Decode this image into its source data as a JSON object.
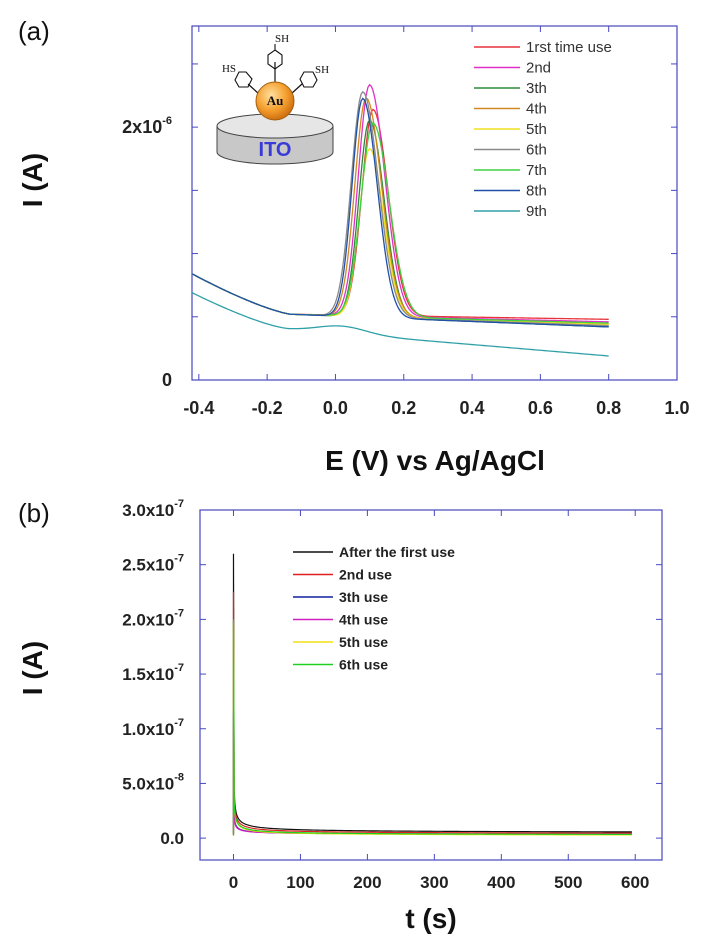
{
  "chart_data": [
    {
      "type": "line",
      "panel_label": "(a)",
      "xlabel": "E (V) vs Ag/AgCl",
      "ylabel": "I (A)",
      "xlim": [
        -0.42,
        1.0
      ],
      "ylim": [
        0,
        2.8e-06
      ],
      "x_ticks": [
        "-0.4",
        "-0.2",
        "0.0",
        "0.2",
        "0.4",
        "0.6",
        "0.8",
        "1.0"
      ],
      "x_tick_values": [
        -0.4,
        -0.2,
        0.0,
        0.2,
        0.4,
        0.6,
        0.8,
        1.0
      ],
      "y_ticks": [
        {
          "base": "0",
          "exp": "",
          "value": 0
        },
        {
          "base": "2x10",
          "exp": "-6",
          "value": 2e-06
        }
      ],
      "legend_position": "top-right",
      "inset": {
        "substrate": "ITO",
        "particle": "Au",
        "ligand_labels": [
          "SH",
          "HS",
          "SH"
        ]
      },
      "series": [
        {
          "name": "1rst time use",
          "color": "#e8333a",
          "peak_x": 0.11,
          "peak_y": 2.15e-06,
          "width": 0.054,
          "base_end": 4.8e-07,
          "shift": 0.0
        },
        {
          "name": "2nd",
          "color": "#e030c8",
          "peak_x": 0.1,
          "peak_y": 2.35e-06,
          "width": 0.055,
          "base_end": 4.6e-07,
          "shift": 0.0
        },
        {
          "name": "3th",
          "color": "#2a8a3a",
          "peak_x": 0.1,
          "peak_y": 2.08e-06,
          "width": 0.052,
          "base_end": 4.2e-07,
          "shift": -0.01
        },
        {
          "name": "4th",
          "color": "#d08a20",
          "peak_x": 0.09,
          "peak_y": 2.25e-06,
          "width": 0.055,
          "base_end": 4.4e-07,
          "shift": 0.0
        },
        {
          "name": "5th",
          "color": "#f2e020",
          "peak_x": 0.1,
          "peak_y": 1.85e-06,
          "width": 0.05,
          "base_end": 4.4e-07,
          "shift": 0.01
        },
        {
          "name": "6th",
          "color": "#8a8a8a",
          "peak_x": 0.08,
          "peak_y": 2.3e-06,
          "width": 0.056,
          "base_end": 4.3e-07,
          "shift": -0.01
        },
        {
          "name": "7th",
          "color": "#40d040",
          "peak_x": 0.11,
          "peak_y": 2.05e-06,
          "width": 0.058,
          "base_end": 4.5e-07,
          "shift": 0.0
        },
        {
          "name": "8th",
          "color": "#2050a8",
          "peak_x": 0.08,
          "peak_y": 2.25e-06,
          "width": 0.052,
          "base_end": 4.2e-07,
          "shift": -0.01
        },
        {
          "name": "9th",
          "color": "#30a0a8",
          "peak_x": 0.02,
          "peak_y": 4e-08,
          "width": 0.1,
          "base_end": 3.1e-07,
          "shift": 0.0
        }
      ]
    },
    {
      "type": "line",
      "panel_label": "(b)",
      "xlabel": "t (s)",
      "ylabel": "I (A)",
      "xlim": [
        -50,
        640
      ],
      "ylim": [
        -2e-08,
        3e-07
      ],
      "x_ticks": [
        "0",
        "100",
        "200",
        "300",
        "400",
        "500",
        "600"
      ],
      "x_tick_values": [
        0,
        100,
        200,
        300,
        400,
        500,
        600
      ],
      "y_ticks": [
        {
          "base": "0.0",
          "exp": "",
          "value": 0
        },
        {
          "base": "5.0x10",
          "exp": "-8",
          "value": 5e-08
        },
        {
          "base": "1.0x10",
          "exp": "-7",
          "value": 1e-07
        },
        {
          "base": "1.5x10",
          "exp": "-7",
          "value": 1.5e-07
        },
        {
          "base": "2.0x10",
          "exp": "-7",
          "value": 2e-07
        },
        {
          "base": "2.5x10",
          "exp": "-7",
          "value": 2.5e-07
        },
        {
          "base": "3.0x10",
          "exp": "-7",
          "value": 3e-07
        }
      ],
      "legend_position": "top-center",
      "series": [
        {
          "name": "After the first use",
          "color": "#111111",
          "i0": 2.6e-07,
          "plateau": 4.5e-09
        },
        {
          "name": "2nd use",
          "color": "#e02020",
          "i0": 2.25e-07,
          "plateau": 3.5e-09
        },
        {
          "name": "3th use",
          "color": "#1020a0",
          "i0": 1.15e-07,
          "plateau": 3e-09
        },
        {
          "name": "4th use",
          "color": "#d020c0",
          "i0": 1e-07,
          "plateau": 3.2e-09
        },
        {
          "name": "5th use",
          "color": "#f0e010",
          "i0": 1.95e-07,
          "plateau": 2e-09
        },
        {
          "name": "6th use",
          "color": "#20d020",
          "i0": 2e-07,
          "plateau": 2.5e-09
        }
      ]
    }
  ]
}
